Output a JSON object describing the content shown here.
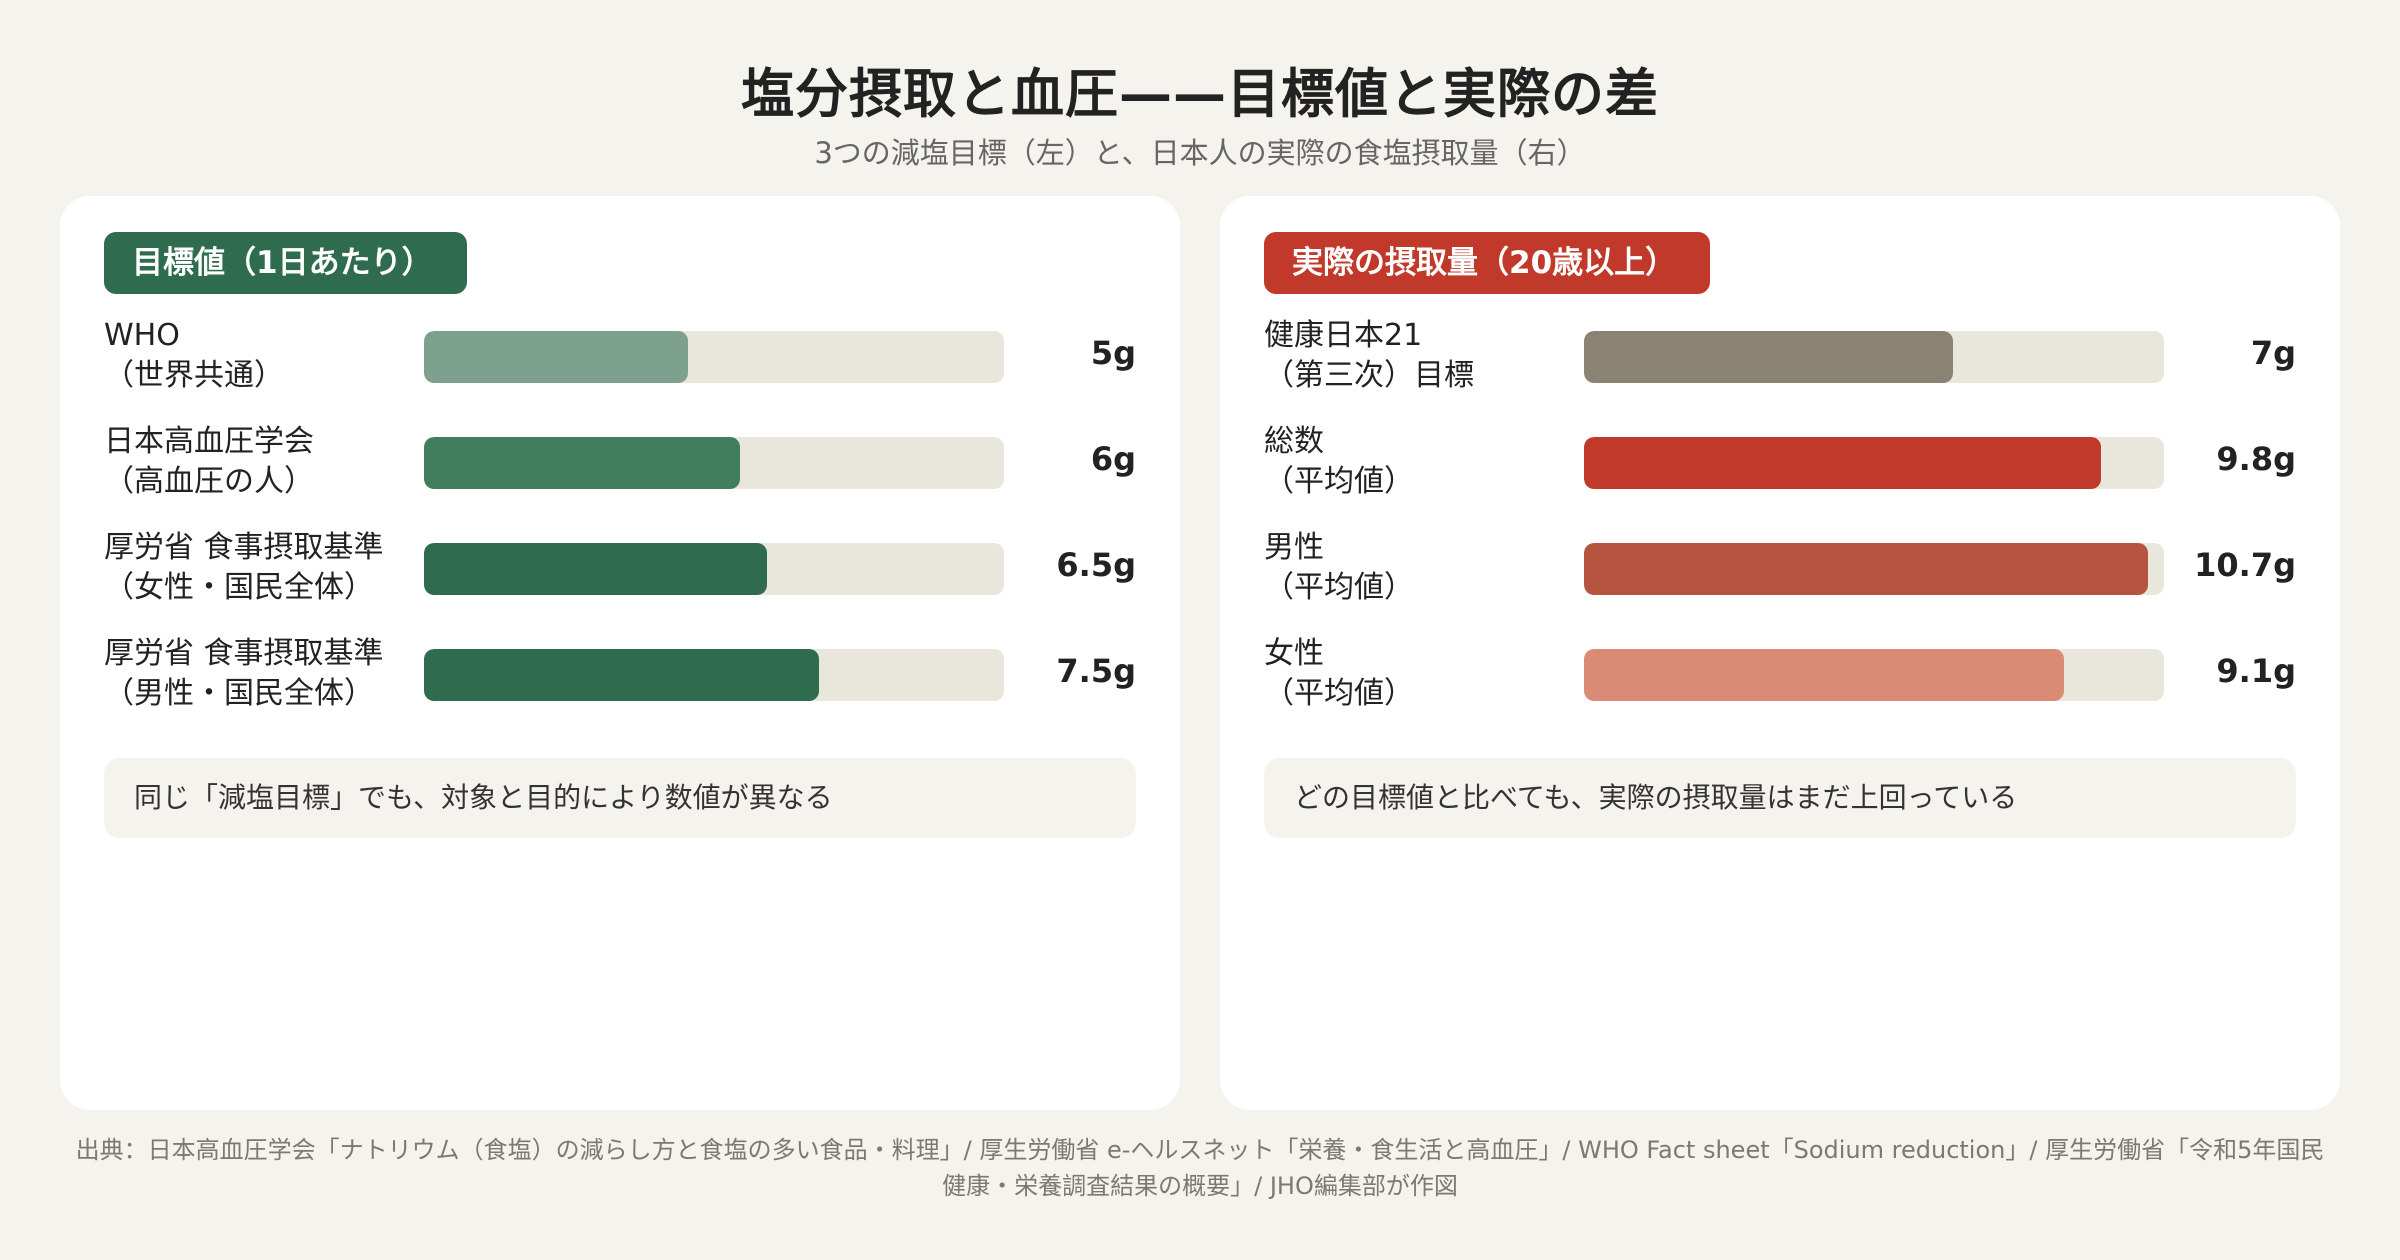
{
  "title": "塩分摂取と血圧——目標値と実際の差",
  "subtitle": "3つの減塩目標（左）と、日本人の実際の食塩摂取量（右）",
  "colors": {
    "background": "#f4f3ee",
    "track": "#e9e6db",
    "left_badge": "#2e6b4f",
    "right_badge": "#c0392b"
  },
  "chart_data": [
    {
      "type": "bar",
      "orientation": "horizontal",
      "title": "目標値（1日あたり）",
      "unit": "g",
      "xlim": [
        0,
        11
      ],
      "categories": [
        [
          "WHO",
          "（世界共通）"
        ],
        [
          "日本高血圧学会",
          "（高血圧の人）"
        ],
        [
          "厚労省 食事摂取基準",
          "（女性・国民全体）"
        ],
        [
          "厚労省 食事摂取基準",
          "（男性・国民全体）"
        ]
      ],
      "values": [
        5,
        6,
        6.5,
        7.5
      ],
      "value_labels": [
        "5g",
        "6g",
        "6.5g",
        "7.5g"
      ],
      "colors": [
        "#7ea08f",
        "#3f7d5c",
        "#2e6b4f",
        "#2e6b4f"
      ],
      "note": "同じ「減塩目標」でも、対象と目的により数値が異なる"
    },
    {
      "type": "bar",
      "orientation": "horizontal",
      "title": "実際の摂取量（20歳以上）",
      "unit": "g",
      "xlim": [
        0,
        11
      ],
      "categories": [
        [
          "健康日本21",
          "（第三次）目標"
        ],
        [
          "総数",
          "（平均値）"
        ],
        [
          "男性",
          "（平均値）"
        ],
        [
          "女性",
          "（平均値）"
        ]
      ],
      "values": [
        7,
        9.8,
        10.7,
        9.1
      ],
      "value_labels": [
        "7g",
        "9.8g",
        "10.7g",
        "9.1g"
      ],
      "colors": [
        "#8a8272",
        "#c0392b",
        "#b5553f",
        "#db8a76"
      ],
      "note": "どの目標値と比べても、実際の摂取量はまだ上回っている"
    }
  ],
  "source": [
    "出典：日本高血圧学会「ナトリウム（食塩）の減らし方と食塩の多い食品・料理」/ 厚生労働省 e-ヘルスネット「栄養・食生活と高血圧」/ WHO Fact sheet「Sodium reduction」/ 厚生労働省「令和5年国民",
    "健康・栄養調査結果の概要」/ JHO編集部が作図"
  ]
}
